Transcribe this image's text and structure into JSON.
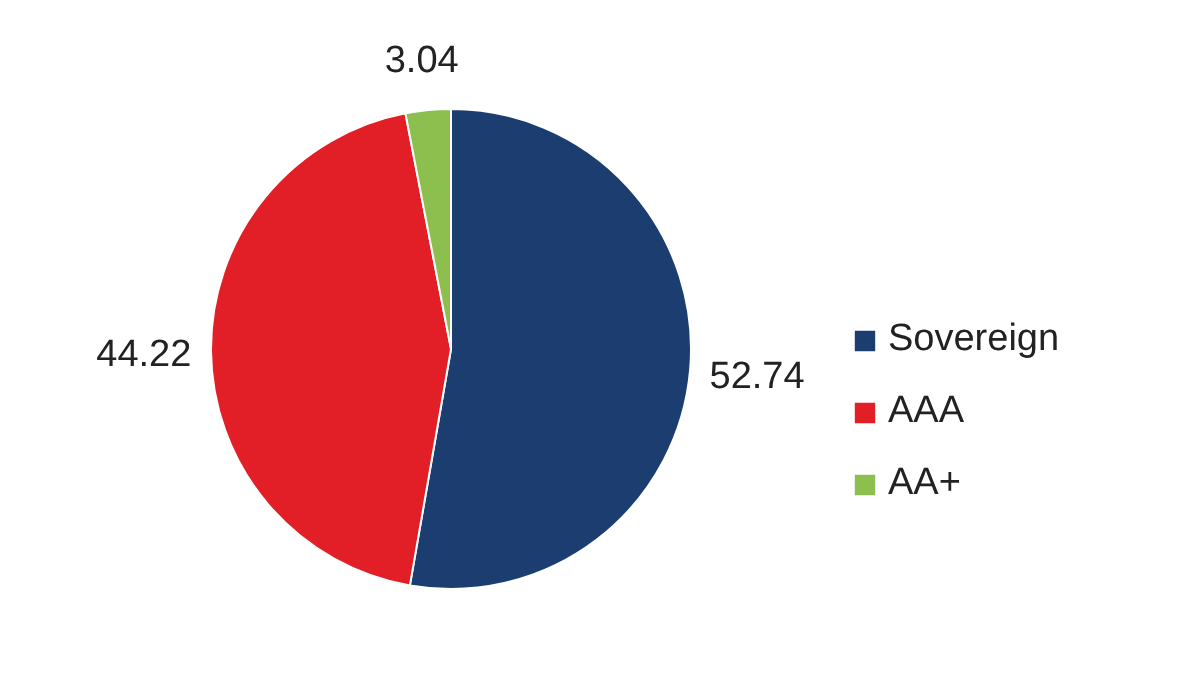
{
  "chart_data": {
    "type": "pie",
    "categories": [
      "Sovereign",
      "AAA",
      "AA+"
    ],
    "values": [
      52.74,
      44.22,
      3.04
    ],
    "colors": [
      "#1b3d6f",
      "#e21f26",
      "#8dbf4e"
    ],
    "data_labels": true,
    "legend": "right"
  }
}
